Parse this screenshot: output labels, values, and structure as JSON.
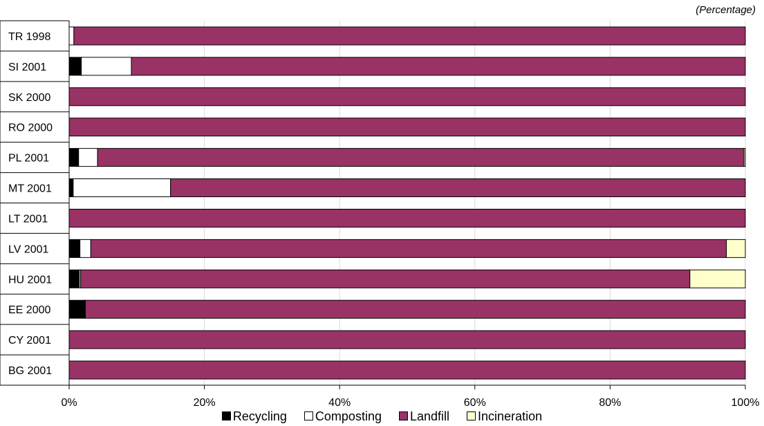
{
  "chart_data": {
    "type": "bar",
    "orientation": "horizontal",
    "stacked": true,
    "percent_stacked": true,
    "unit_note": "(Percentage)",
    "categories": [
      "TR 1998",
      "SI 2001",
      "SK 2000",
      "RO 2000",
      "PL 2001",
      "MT 2001",
      "LT 2001",
      "LV 2001",
      "HU 2001",
      "EE 2000",
      "CY 2001",
      "BG 2001"
    ],
    "series": [
      {
        "name": "Recycling",
        "color": "#000000",
        "values": [
          0,
          1.8,
          0,
          0,
          1.4,
          0.6,
          0,
          1.6,
          1.5,
          2.4,
          0,
          0
        ]
      },
      {
        "name": "Composting",
        "color": "#ffffff",
        "values": [
          0.7,
          7.4,
          0,
          0,
          2.8,
          14.4,
          0,
          1.6,
          0.2,
          0,
          0,
          0
        ]
      },
      {
        "name": "Landfill",
        "color": "#993366",
        "values": [
          99.3,
          90.8,
          100,
          100,
          95.6,
          85.0,
          100,
          94.0,
          90.1,
          97.6,
          100,
          100
        ]
      },
      {
        "name": "Incineration",
        "color": "#ffffcc",
        "values": [
          0,
          0,
          0,
          0,
          0.2,
          0,
          0,
          2.8,
          8.2,
          0,
          0,
          0
        ]
      }
    ],
    "x_ticks": [
      "0%",
      "20%",
      "40%",
      "60%",
      "80%",
      "100%"
    ],
    "xlim": [
      0,
      100
    ],
    "grid": true,
    "legend_position": "bottom"
  }
}
